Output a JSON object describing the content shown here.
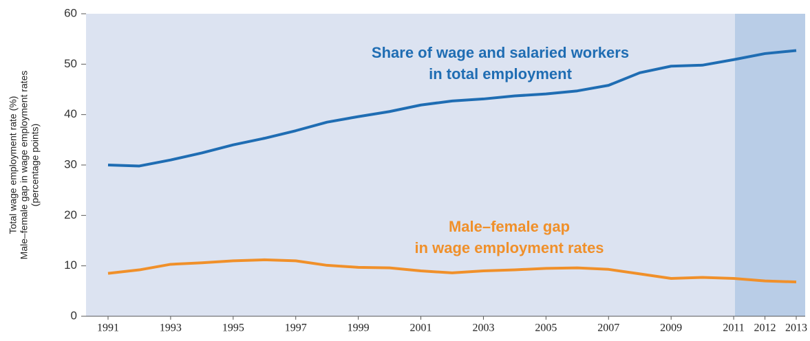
{
  "chart_data": {
    "type": "line",
    "y_label_lines": [
      "Total wage employment rate (%)",
      "Male–female gap in wage employment rates",
      "(percentage points)"
    ],
    "x": [
      1991,
      1992,
      1993,
      1994,
      1995,
      1996,
      1997,
      1998,
      1999,
      2000,
      2001,
      2002,
      2003,
      2004,
      2005,
      2006,
      2007,
      2008,
      2009,
      2010,
      2011,
      2012,
      2013
    ],
    "series": [
      {
        "color": "#1f6db3",
        "values": [
          30,
          29.8,
          31,
          32.4,
          34,
          35.3,
          36.8,
          38.5,
          39.6,
          40.6,
          41.9,
          42.7,
          43.1,
          43.7,
          44.1,
          44.7,
          45.8,
          48.3,
          49.6,
          49.8,
          50.9,
          52.1,
          52.7
        ]
      },
      {
        "color": "#f0902a",
        "values": [
          8.5,
          9.2,
          10.3,
          10.6,
          11.0,
          11.2,
          11.0,
          10.1,
          9.7,
          9.6,
          9.0,
          8.6,
          9.0,
          9.2,
          9.5,
          9.6,
          9.3,
          8.4,
          7.5,
          7.7,
          7.5,
          7.0,
          6.8
        ]
      }
    ],
    "annotations": [
      {
        "lines": [
          "Share of wage and salaried workers",
          "in total employment"
        ],
        "color": "#1f6db3"
      },
      {
        "lines": [
          "Male–female gap",
          "in wage employment rates"
        ],
        "color": "#f0902a"
      }
    ],
    "xlim": [
      1991,
      2013
    ],
    "xticks": [
      1991,
      1993,
      1995,
      1997,
      1999,
      2001,
      2003,
      2005,
      2007,
      2009,
      2011,
      2012,
      2013
    ],
    "ylim": [
      0,
      60
    ],
    "yticks": [
      0,
      10,
      20,
      30,
      40,
      50,
      60
    ]
  }
}
